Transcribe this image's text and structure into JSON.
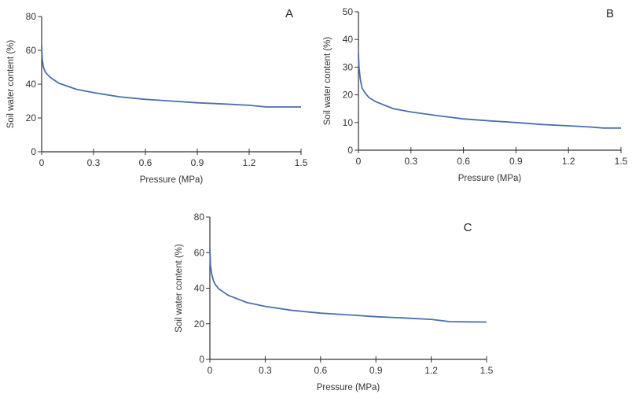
{
  "chart_data": [
    {
      "type": "line",
      "panel_label": "A",
      "xlabel": "Pressure (MPa)",
      "ylabel": "Soil water content (%)",
      "xlim": [
        0,
        1.5
      ],
      "ylim": [
        0,
        80
      ],
      "xticks": [
        "0",
        "0.3",
        "0.6",
        "0.9",
        "1.2",
        "1.5"
      ],
      "yticks": [
        "0",
        "20",
        "40",
        "60",
        "80"
      ],
      "grid": false,
      "line_color": "#4a6fae",
      "series": [
        {
          "x": [
            0,
            0.003,
            0.01,
            0.02,
            0.03,
            0.05,
            0.1,
            0.2,
            0.3,
            0.45,
            0.6,
            0.75,
            0.9,
            1.05,
            1.2,
            1.3,
            1.4,
            1.5
          ],
          "y": [
            63,
            55,
            50,
            47.5,
            46,
            44,
            40.5,
            37,
            35,
            32.5,
            31,
            30,
            29,
            28.3,
            27.5,
            26.5,
            26.5,
            26.5
          ]
        }
      ]
    },
    {
      "type": "line",
      "panel_label": "B",
      "xlabel": "Pressure (MPa)",
      "ylabel": "Soil water content (%)",
      "xlim": [
        0,
        1.5
      ],
      "ylim": [
        0,
        50
      ],
      "xticks": [
        "0",
        "0.3",
        "0.6",
        "0.9",
        "1.2",
        "1.5"
      ],
      "yticks": [
        "0",
        "10",
        "20",
        "30",
        "40",
        "50"
      ],
      "grid": false,
      "line_color": "#4a6fae",
      "series": [
        {
          "x": [
            0,
            0.003,
            0.01,
            0.02,
            0.04,
            0.06,
            0.1,
            0.2,
            0.3,
            0.45,
            0.6,
            0.75,
            0.9,
            1.05,
            1.2,
            1.3,
            1.4,
            1.5
          ],
          "y": [
            35,
            30,
            26,
            22.5,
            20.5,
            19,
            17.5,
            15,
            13.8,
            12.5,
            11.3,
            10.6,
            10,
            9.3,
            8.8,
            8.5,
            8,
            8
          ]
        }
      ]
    },
    {
      "type": "line",
      "panel_label": "C",
      "xlabel": "Pressure (MPa)",
      "ylabel": "Soil water content (%)",
      "xlim": [
        0,
        1.5
      ],
      "ylim": [
        0,
        80
      ],
      "xticks": [
        "0",
        "0.3",
        "0.6",
        "0.9",
        "1.2",
        "1.5"
      ],
      "yticks": [
        "0",
        "20",
        "40",
        "60",
        "80"
      ],
      "grid": false,
      "line_color": "#4a6fae",
      "series": [
        {
          "x": [
            0,
            0.003,
            0.01,
            0.02,
            0.03,
            0.05,
            0.1,
            0.2,
            0.3,
            0.45,
            0.6,
            0.75,
            0.9,
            1.05,
            1.2,
            1.3,
            1.4,
            1.5
          ],
          "y": [
            62,
            53,
            48,
            44,
            42,
            39.5,
            36,
            32,
            29.8,
            27.5,
            26,
            25,
            24,
            23.3,
            22.5,
            21.2,
            21.1,
            21
          ]
        }
      ]
    }
  ]
}
